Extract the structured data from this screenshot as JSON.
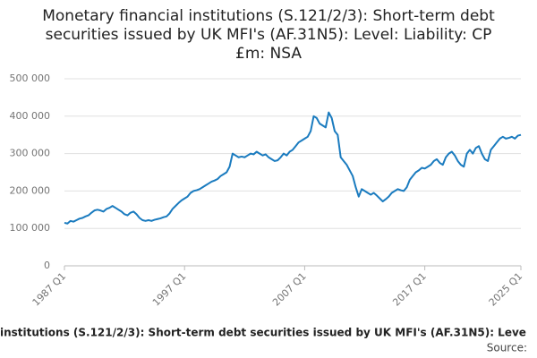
{
  "chart_data": {
    "type": "line",
    "title": [
      "Monetary financial institutions (S.121/2/3): Short-term debt",
      "securities issued by UK MFI's (AF.31N5): Level: Liability: CP",
      "£m: NSA"
    ],
    "x_label": "institutions (S.121/2/3): Short-term debt securities issued by UK MFI's (AF.31N5): Leve",
    "source": "Source:",
    "categories": [
      "1987 Q1",
      null,
      null,
      null,
      null,
      null,
      null,
      null,
      null,
      null,
      null,
      null,
      null,
      null,
      null,
      null,
      null,
      null,
      null,
      null,
      null,
      null,
      null,
      null,
      null,
      null,
      null,
      null,
      null,
      null,
      null,
      null,
      null,
      null,
      null,
      null,
      null,
      null,
      null,
      null,
      "1997 Q1",
      null,
      null,
      null,
      null,
      null,
      null,
      null,
      null,
      null,
      null,
      null,
      null,
      null,
      null,
      null,
      null,
      null,
      null,
      null,
      null,
      null,
      null,
      null,
      null,
      null,
      null,
      null,
      null,
      null,
      null,
      null,
      null,
      null,
      null,
      null,
      null,
      null,
      null,
      null,
      "2007 Q1",
      null,
      null,
      null,
      null,
      null,
      null,
      null,
      null,
      null,
      null,
      null,
      null,
      null,
      null,
      null,
      null,
      null,
      null,
      null,
      null,
      null,
      null,
      null,
      null,
      null,
      null,
      null,
      null,
      null,
      null,
      null,
      null,
      null,
      null,
      null,
      null,
      null,
      null,
      null,
      "2017 Q1",
      null,
      null,
      null,
      null,
      null,
      null,
      null,
      null,
      null,
      null,
      null,
      null,
      null,
      null,
      null,
      null,
      null,
      null,
      null,
      null,
      null,
      null,
      null,
      null,
      null,
      null,
      null,
      null,
      null,
      null,
      null,
      "2025 Q1"
    ],
    "series": [
      {
        "name": "CP",
        "color": "#1a7bbf",
        "values": [
          115000,
          113000,
          120000,
          118000,
          122000,
          126000,
          128000,
          132000,
          135000,
          142000,
          148000,
          150000,
          148000,
          145000,
          152000,
          155000,
          160000,
          155000,
          150000,
          145000,
          138000,
          135000,
          142000,
          145000,
          138000,
          128000,
          122000,
          120000,
          122000,
          120000,
          123000,
          125000,
          127000,
          130000,
          132000,
          140000,
          152000,
          160000,
          168000,
          175000,
          180000,
          185000,
          195000,
          200000,
          202000,
          205000,
          210000,
          215000,
          220000,
          225000,
          228000,
          232000,
          240000,
          245000,
          250000,
          265000,
          300000,
          295000,
          290000,
          292000,
          290000,
          295000,
          300000,
          298000,
          305000,
          300000,
          295000,
          298000,
          290000,
          285000,
          280000,
          282000,
          290000,
          300000,
          295000,
          305000,
          310000,
          320000,
          330000,
          335000,
          340000,
          345000,
          360000,
          400000,
          395000,
          380000,
          375000,
          370000,
          410000,
          395000,
          360000,
          350000,
          290000,
          280000,
          270000,
          255000,
          240000,
          210000,
          185000,
          205000,
          200000,
          195000,
          190000,
          195000,
          188000,
          180000,
          172000,
          178000,
          185000,
          195000,
          200000,
          205000,
          202000,
          200000,
          210000,
          230000,
          240000,
          250000,
          255000,
          262000,
          260000,
          265000,
          270000,
          280000,
          285000,
          275000,
          270000,
          290000,
          300000,
          305000,
          295000,
          280000,
          270000,
          265000,
          300000,
          310000,
          300000,
          315000,
          320000,
          300000,
          285000,
          280000,
          310000,
          320000,
          330000,
          340000,
          345000,
          340000,
          342000,
          345000,
          340000,
          348000,
          350000
        ]
      }
    ],
    "ylim": [
      0,
      500000
    ],
    "yticks": [
      0,
      {
        "value": 100000,
        "label": "100 000"
      },
      {
        "value": 200000,
        "label": "200 000"
      },
      {
        "value": 300000,
        "label": "300 000"
      },
      {
        "value": 400000,
        "label": "400 000"
      },
      {
        "value": 500000,
        "label": "500 000"
      }
    ],
    "grid": true
  }
}
